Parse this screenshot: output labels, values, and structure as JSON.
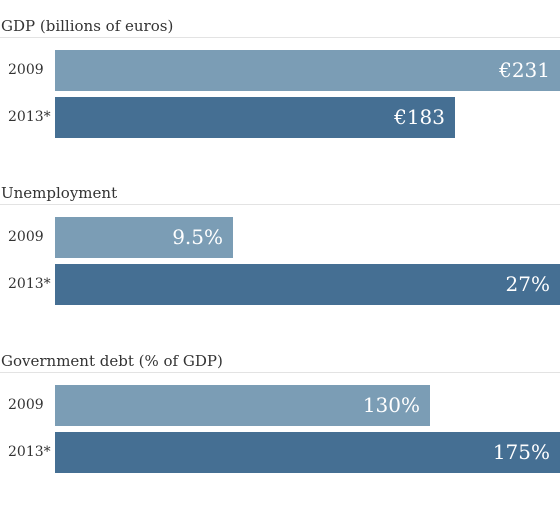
{
  "colors": {
    "series_2009": "#7b9db5",
    "series_2013": "#456f93",
    "value_text": "#ffffff"
  },
  "chart_data": [
    {
      "type": "bar",
      "orientation": "horizontal",
      "title": "GDP (billions of euros)",
      "categories": [
        "2009",
        "2013*"
      ],
      "values": [
        231,
        183
      ],
      "value_labels": [
        "€231",
        "€183"
      ],
      "xlim": [
        0,
        231
      ],
      "grid": false,
      "legend": "none"
    },
    {
      "type": "bar",
      "orientation": "horizontal",
      "title": "Unemployment",
      "categories": [
        "2009",
        "2013*"
      ],
      "values": [
        9.5,
        27
      ],
      "value_labels": [
        "9.5%",
        "27%"
      ],
      "xlim": [
        0,
        27
      ],
      "grid": false,
      "legend": "none"
    },
    {
      "type": "bar",
      "orientation": "horizontal",
      "title": "Government debt (% of GDP)",
      "categories": [
        "2009",
        "2013*"
      ],
      "values": [
        130,
        175
      ],
      "value_labels": [
        "130%",
        "175%"
      ],
      "xlim": [
        0,
        175
      ],
      "grid": false,
      "legend": "none"
    }
  ]
}
